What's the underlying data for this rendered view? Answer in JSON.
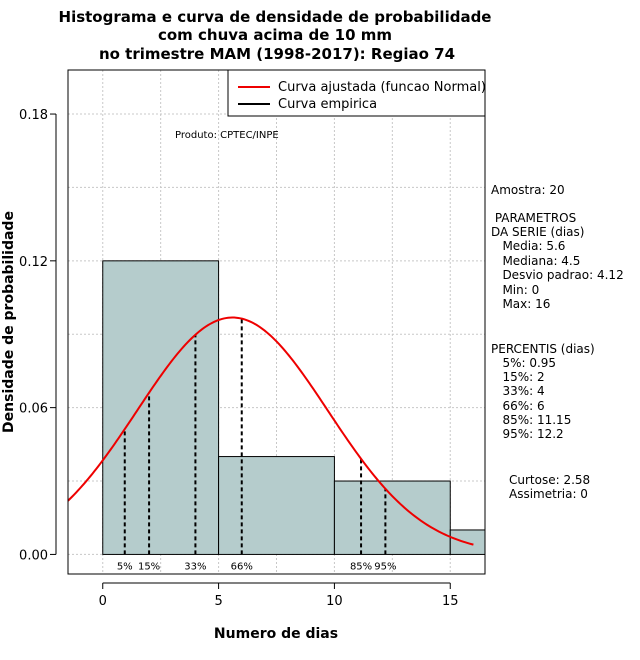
{
  "chart_data": {
    "type": "bar",
    "title": [
      "Histograma e curva de densidade de probabilidade",
      "com chuva acima de 10 mm",
      "no trimestre MAM (1998-2017): Regiao 74"
    ],
    "xlabel": "Numero de dias",
    "ylabel": "Densidade de probabilidade",
    "xlim": [
      -1.5,
      16.5
    ],
    "ylim": [
      -0.008,
      0.198
    ],
    "x_ticks": [
      0,
      5,
      10,
      15
    ],
    "x_tick_labels": [
      "0",
      "5",
      "10",
      "15"
    ],
    "y_ticks": [
      0.0,
      0.06,
      0.12,
      0.18
    ],
    "y_tick_labels": [
      "0.00",
      "0.06",
      "0.12",
      "0.18"
    ],
    "grid": true,
    "bins": [
      {
        "x0": 0,
        "x1": 5,
        "density": 0.12
      },
      {
        "x0": 5,
        "x1": 10,
        "density": 0.04
      },
      {
        "x0": 10,
        "x1": 15,
        "density": 0.03
      },
      {
        "x0": 15,
        "x1": 16.5,
        "density": 0.01
      }
    ],
    "normal_curve": {
      "mean": 5.6,
      "sd": 4.12,
      "x_from": -1.5,
      "x_to": 16,
      "color": "#ee0000"
    },
    "percentiles": [
      {
        "label": "5%",
        "x": 0.95
      },
      {
        "label": "15%",
        "x": 2
      },
      {
        "label": "33%",
        "x": 4
      },
      {
        "label": "66%",
        "x": 6
      },
      {
        "label": "85%",
        "x": 11.15
      },
      {
        "label": "95%",
        "x": 12.2
      }
    ],
    "legend": {
      "placement": "top-right",
      "entries": [
        {
          "label": "Curva ajustada (funcao Normal)",
          "color": "#ee0000"
        },
        {
          "label": "Curva empirica",
          "color": "#000000"
        }
      ]
    },
    "annotation": "Produto: CPTEC/INPE",
    "bar_color": "#b5cccc"
  },
  "side_panel": {
    "lines": [
      "Amostra: 20",
      " PARAMETROS",
      "DA SERIE (dias)",
      "   Media: 5.6",
      "   Mediana: 4.5",
      "   Desvio padrao: 4.12",
      "   Min: 0",
      "   Max: 16",
      "PERCENTIS (dias)",
      "   5%: 0.95",
      "   15%: 2",
      "   33%: 4",
      "   66%: 6",
      "   85%: 11.15",
      "   95%: 12.2",
      "Curtose: 2.58",
      "Assimetria: 0"
    ]
  }
}
